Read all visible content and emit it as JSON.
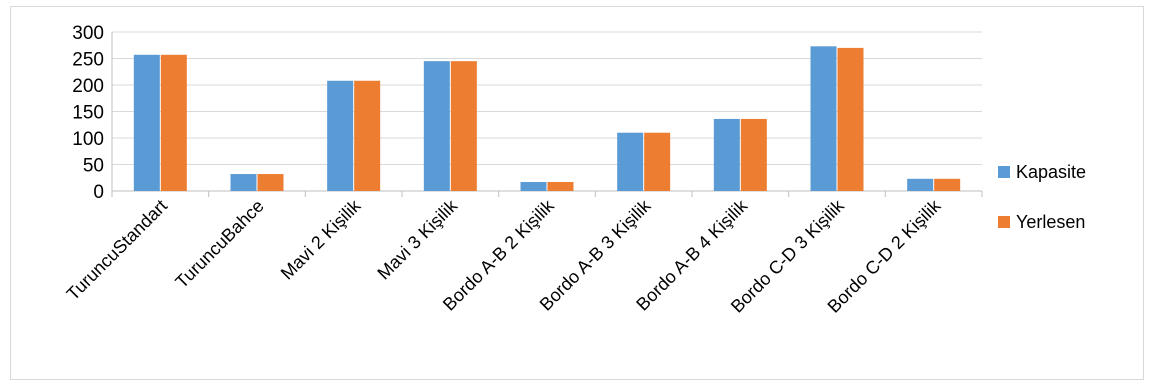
{
  "chart_data": {
    "type": "bar",
    "title": "",
    "xlabel": "",
    "ylabel": "",
    "ylim": [
      0,
      300
    ],
    "yticks": [
      0,
      50,
      100,
      150,
      200,
      250,
      300
    ],
    "grid": true,
    "legend_position": "right",
    "categories": [
      "TuruncuStandart",
      "TuruncuBahce",
      "Mavi 2 Kişilik",
      "Mavi 3 Kişilik",
      "Bordo A-B 2 Kişilik",
      "Bordo A-B 3 Kişilik",
      "Bordo A-B 4 Kişilik",
      "Bordo C-D 3 Kişilik",
      "Bordo C-D 2 Kişilik"
    ],
    "series": [
      {
        "name": "Kapasite",
        "color": "#5B9BD5",
        "values": [
          257,
          32,
          208,
          245,
          17,
          110,
          136,
          273,
          23
        ]
      },
      {
        "name": "Yerlesen",
        "color": "#ED7D31",
        "values": [
          257,
          32,
          208,
          245,
          17,
          110,
          136,
          270,
          23
        ]
      }
    ]
  }
}
